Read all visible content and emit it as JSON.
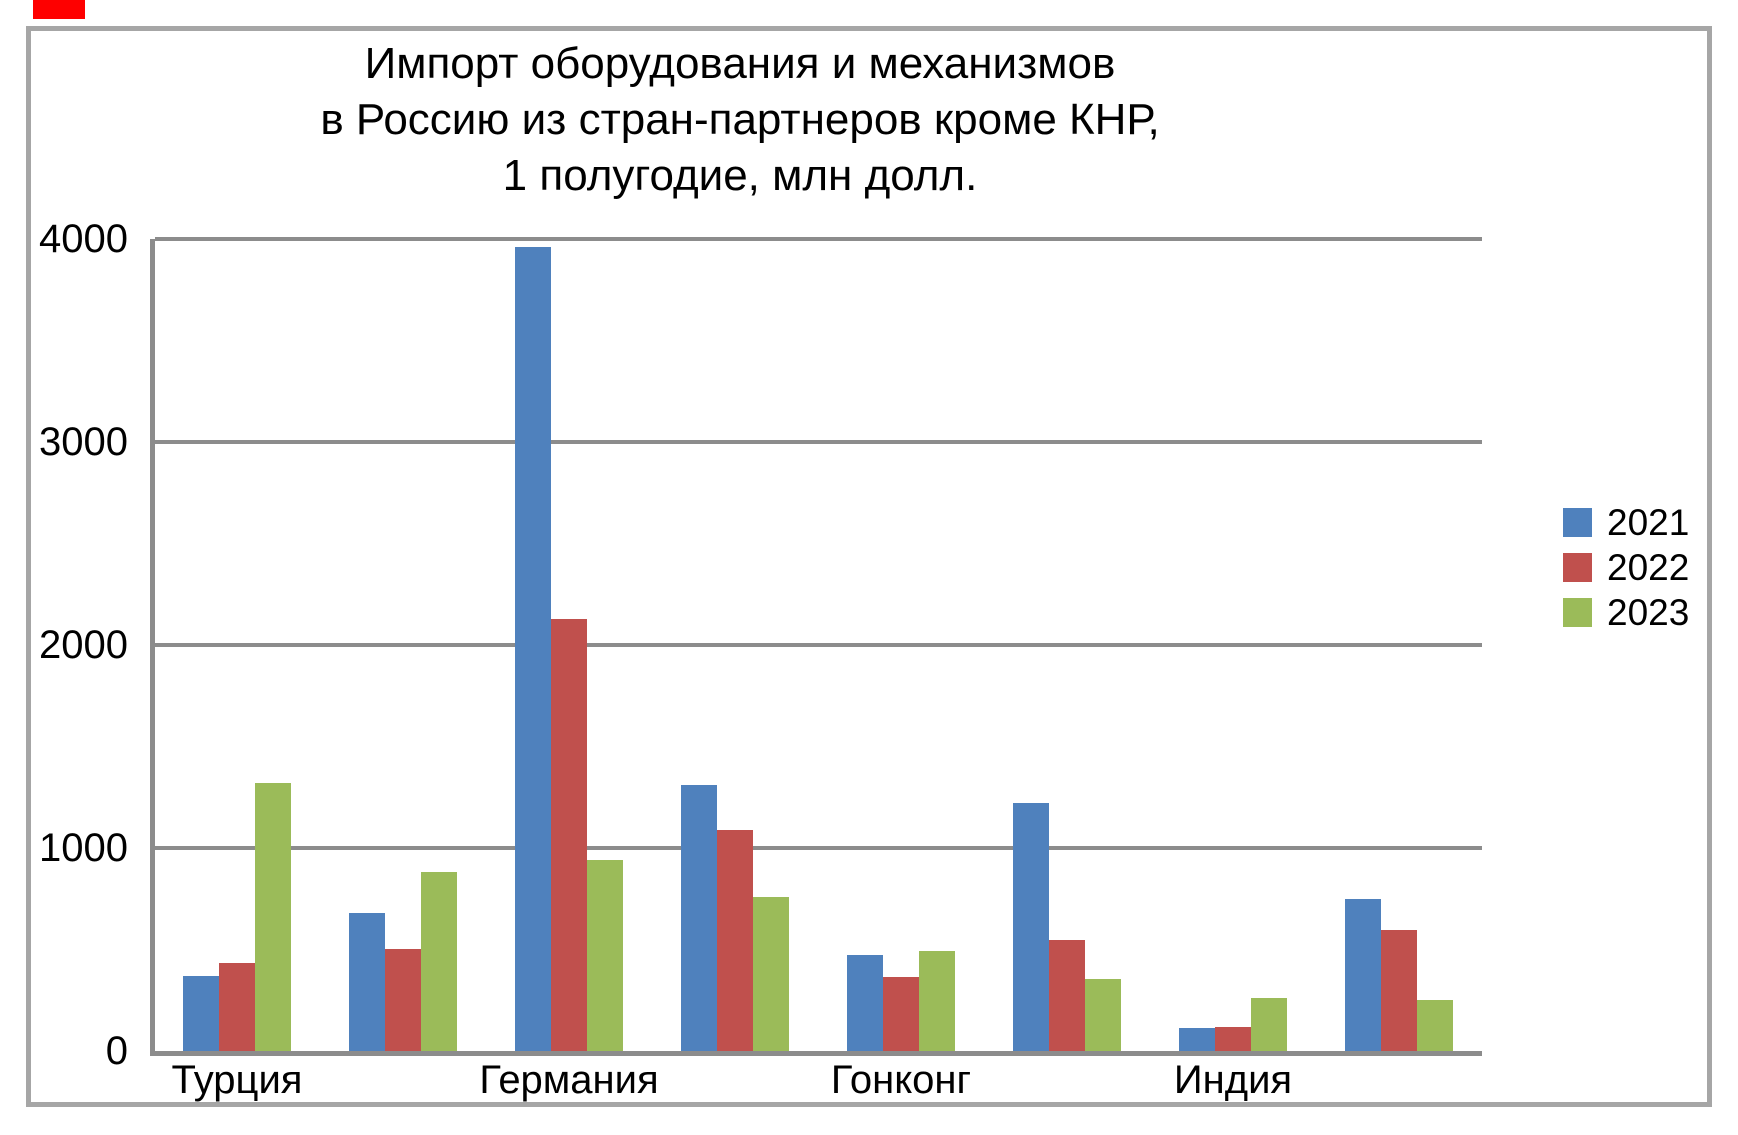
{
  "decor": {
    "red_mark_color": "#fe0000",
    "border_color": "#a6a6a6",
    "grid_color": "#8c8c8c",
    "background": "#ffffff"
  },
  "chart_data": {
    "type": "bar",
    "title": "Импорт оборудования и механизмов в Россию из стран-партнеров кроме КНР, 1 полугодие, млн долл.",
    "title_lines": [
      "Импорт оборудования и механизмов",
      "в Россию из стран-партнеров кроме КНР,",
      "1 полугодие, млн долл."
    ],
    "categories": [
      "Турция",
      "",
      "Германия",
      "",
      "Гонконг",
      "",
      "Индия",
      ""
    ],
    "series": [
      {
        "name": "2021",
        "color": "#4f81bd",
        "values": [
          370,
          680,
          3960,
          1310,
          475,
          1220,
          115,
          750
        ]
      },
      {
        "name": "2022",
        "color": "#c0504d",
        "values": [
          435,
          500,
          2130,
          1090,
          365,
          545,
          120,
          595
        ]
      },
      {
        "name": "2023",
        "color": "#9bbb59",
        "values": [
          1320,
          880,
          940,
          760,
          495,
          355,
          260,
          250
        ]
      }
    ],
    "xlabel": "",
    "ylabel": "",
    "ylim": [
      0,
      4000
    ],
    "yticks": [
      0,
      1000,
      2000,
      3000,
      4000
    ],
    "grid": "horizontal",
    "legend_position": "right"
  }
}
